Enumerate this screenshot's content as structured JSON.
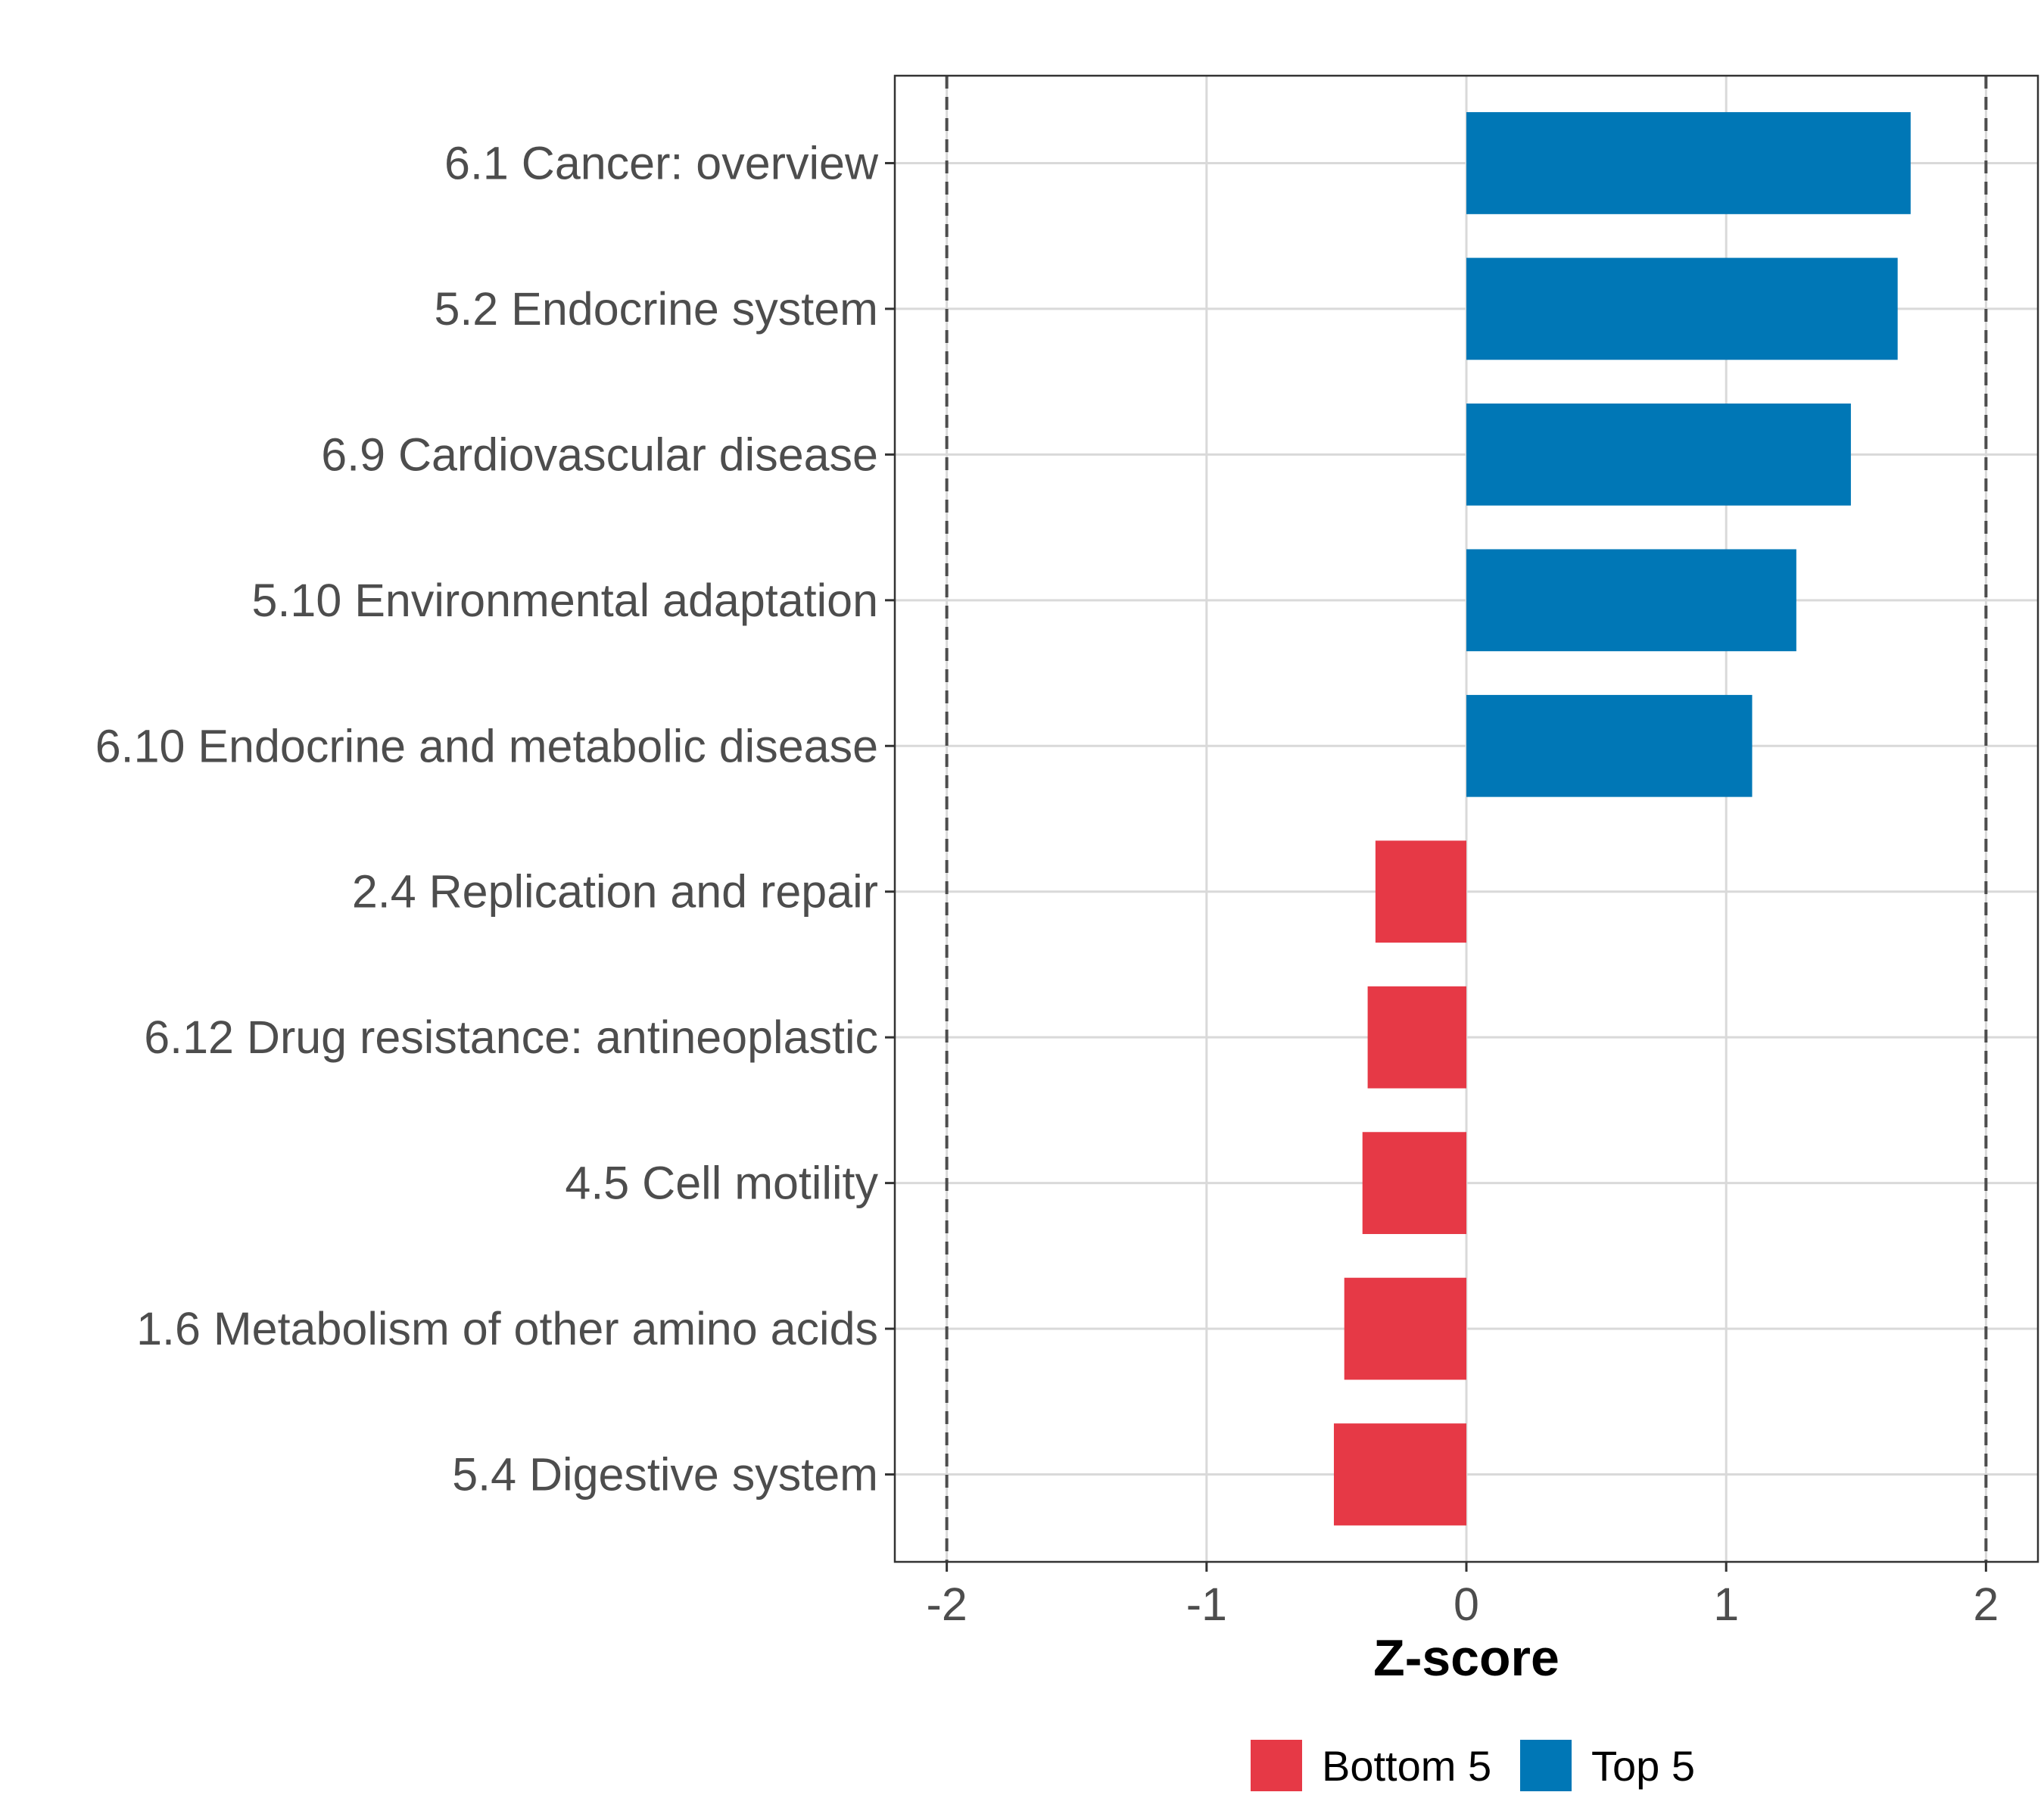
{
  "chart_data": {
    "type": "bar",
    "orientation": "horizontal",
    "title": "",
    "xlabel": "Z-score",
    "ylabel": "",
    "xlim": [
      -2.2,
      2.2
    ],
    "x_ticks": [
      -2,
      -1,
      0,
      1,
      2
    ],
    "x_tick_labels": [
      "-2",
      "-1",
      "0",
      "1",
      "2"
    ],
    "reference_lines": [
      -2,
      2
    ],
    "grid": true,
    "categories": [
      "6.1 Cancer: overview",
      "5.2 Endocrine system",
      "6.9 Cardiovascular disease",
      "5.10 Environmental adaptation",
      "6.10 Endocrine and metabolic disease",
      "2.4 Replication and repair",
      "6.12 Drug resistance: antineoplastic",
      "4.5 Cell motility",
      "1.6 Metabolism of other amino acids",
      "5.4 Digestive system"
    ],
    "values": [
      1.71,
      1.66,
      1.48,
      1.27,
      1.1,
      -0.35,
      -0.38,
      -0.4,
      -0.47,
      -0.51
    ],
    "groups": [
      "Top 5",
      "Top 5",
      "Top 5",
      "Top 5",
      "Top 5",
      "Bottom 5",
      "Bottom 5",
      "Bottom 5",
      "Bottom 5",
      "Bottom 5"
    ],
    "legend": {
      "position": "bottom",
      "entries": [
        {
          "name": "Bottom 5",
          "color": "#e63946"
        },
        {
          "name": "Top 5",
          "color": "#0077b6"
        }
      ]
    }
  }
}
